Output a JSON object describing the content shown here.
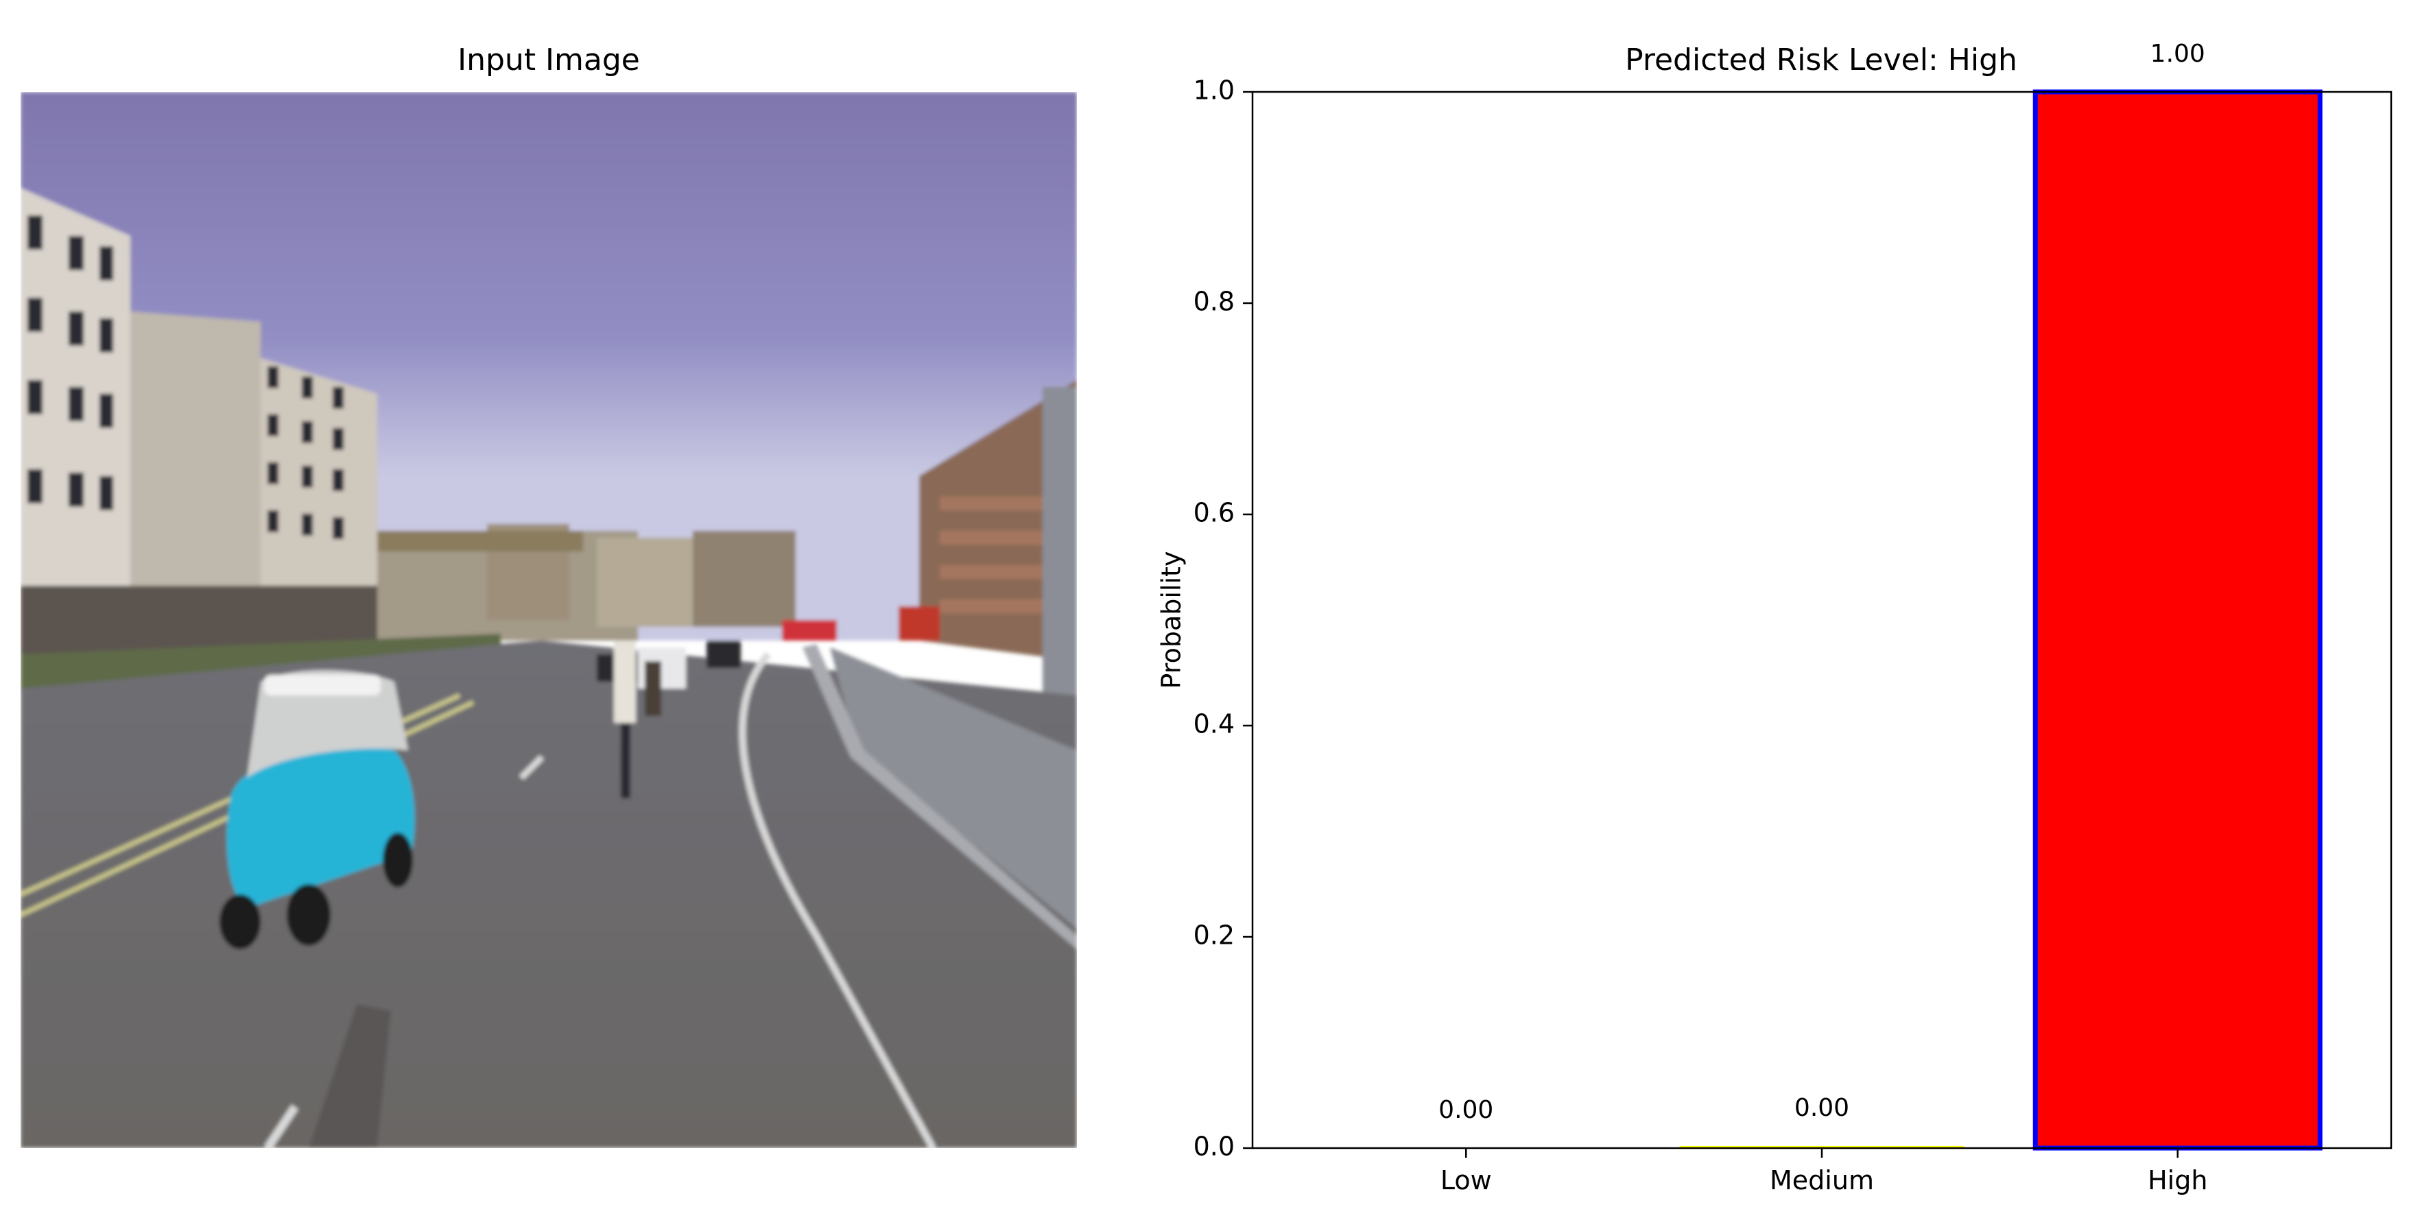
{
  "image_panel": {
    "title": "Input Image",
    "scene": "city street with a cyan microcar and cyclists"
  },
  "chart_data": {
    "type": "bar",
    "title": "Predicted Risk Level: High",
    "categories": [
      "Low",
      "Medium",
      "High"
    ],
    "values": [
      0.0,
      0.002,
      1.0
    ],
    "value_labels": [
      "0.00",
      "0.00",
      "1.00"
    ],
    "colors": [
      "#008000",
      "#ffff00",
      "#ff0000"
    ],
    "highlight": {
      "category": "High",
      "edge_color": "#0000ff"
    },
    "xlabel": "",
    "ylabel": "Probability",
    "ylim": [
      0,
      1.0
    ],
    "yticks": [
      "0.0",
      "0.2",
      "0.4",
      "0.6",
      "0.8",
      "1.0"
    ],
    "grid": false,
    "legend": "none"
  }
}
